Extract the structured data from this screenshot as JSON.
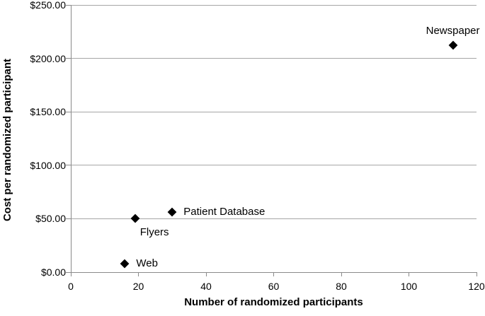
{
  "chart_data": {
    "type": "scatter",
    "title": "",
    "xlabel": "Number of randomized participants",
    "ylabel": "Cost per randomized participant",
    "xlim": [
      0,
      120
    ],
    "ylim": [
      0,
      250
    ],
    "grid": "horizontal",
    "legend": "none",
    "marker_shape": "diamond",
    "marker_color": "#000000",
    "gridline_color": "#a6a6a6",
    "axis_color": "#8a8a8a",
    "text_color": "#000000",
    "background_color": "#ffffff",
    "xticks": [
      {
        "value": 0,
        "label": "0"
      },
      {
        "value": 20,
        "label": "20"
      },
      {
        "value": 40,
        "label": "40"
      },
      {
        "value": 60,
        "label": "60"
      },
      {
        "value": 80,
        "label": "80"
      },
      {
        "value": 100,
        "label": "100"
      },
      {
        "value": 120,
        "label": "120"
      }
    ],
    "yticks": [
      {
        "value": 0,
        "label": "$0.00"
      },
      {
        "value": 50,
        "label": "$50.00"
      },
      {
        "value": 100,
        "label": "$100.00"
      },
      {
        "value": 150,
        "label": "$150.00"
      },
      {
        "value": 200,
        "label": "$200.00"
      },
      {
        "value": 250,
        "label": "$250.00"
      }
    ],
    "points": [
      {
        "label": "Web",
        "x": 16,
        "y": 8,
        "label_position": "right"
      },
      {
        "label": "Flyers",
        "x": 19,
        "y": 50,
        "label_position": "below-right"
      },
      {
        "label": "Patient Database",
        "x": 30,
        "y": 56,
        "label_position": "right"
      },
      {
        "label": "Newspaper",
        "x": 113,
        "y": 212,
        "label_position": "above"
      }
    ]
  }
}
